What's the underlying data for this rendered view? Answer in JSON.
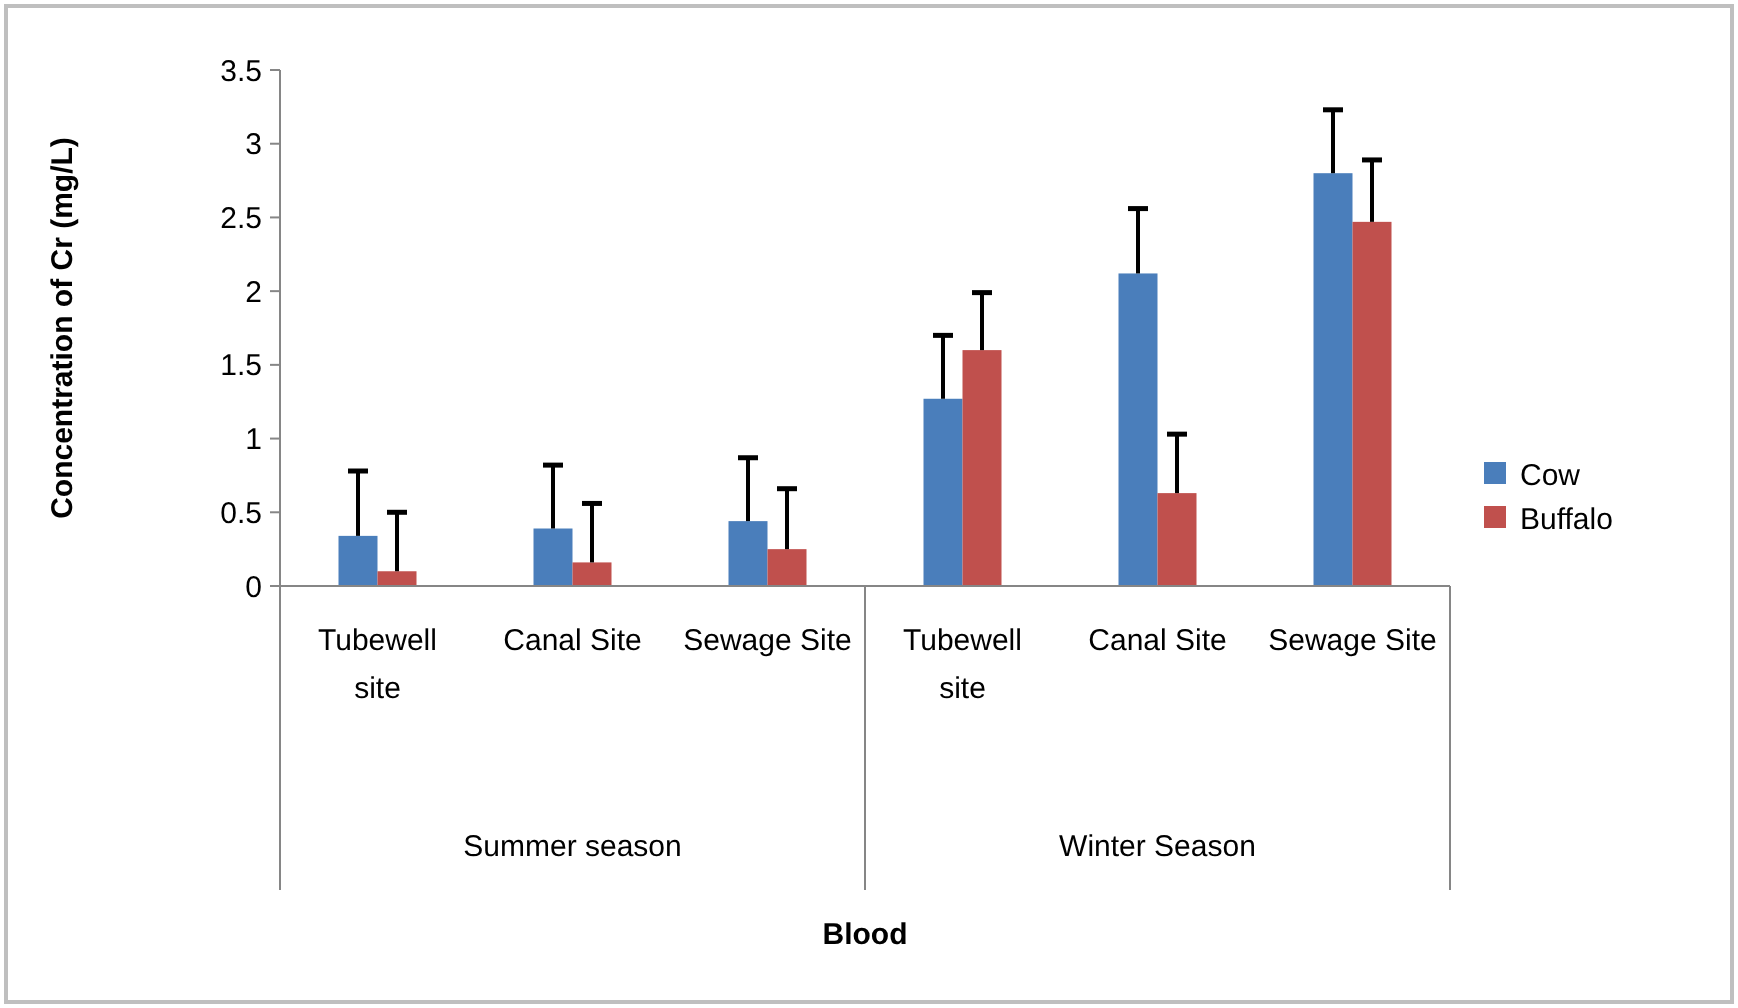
{
  "chart_data": {
    "type": "bar",
    "ylabel": "Concentration of Cr (mg/L)",
    "categories": [
      "Tubewell site",
      "Canal Site",
      "Sewage Site",
      "Tubewell site",
      "Canal Site",
      "Sewage Site"
    ],
    "series": [
      {
        "name": "Cow",
        "color": "#4a7ebb",
        "values": [
          0.34,
          0.39,
          0.44,
          1.27,
          2.12,
          2.8
        ],
        "errors": [
          [
            0.34,
            0.78
          ],
          [
            0.39,
            0.82
          ],
          [
            0.44,
            0.87
          ],
          [
            1.27,
            1.7
          ],
          [
            2.12,
            2.56
          ],
          [
            2.8,
            3.23
          ]
        ]
      },
      {
        "name": "Buffalo",
        "color": "#c0504d",
        "values": [
          0.1,
          0.16,
          0.25,
          1.6,
          0.63,
          2.47
        ],
        "errors": [
          [
            0.1,
            0.5
          ],
          [
            0.16,
            0.56
          ],
          [
            0.25,
            0.66
          ],
          [
            1.6,
            1.99
          ],
          [
            0.63,
            1.03
          ],
          [
            2.47,
            2.89
          ]
        ]
      }
    ],
    "annotations": [
      "Summer season",
      "Winter Season",
      "Blood"
    ],
    "ylim": [
      0,
      3.5
    ],
    "yticks": [
      0,
      0.5,
      1,
      1.5,
      2,
      2.5,
      3,
      3.5
    ],
    "grid": false,
    "legend": "right"
  }
}
